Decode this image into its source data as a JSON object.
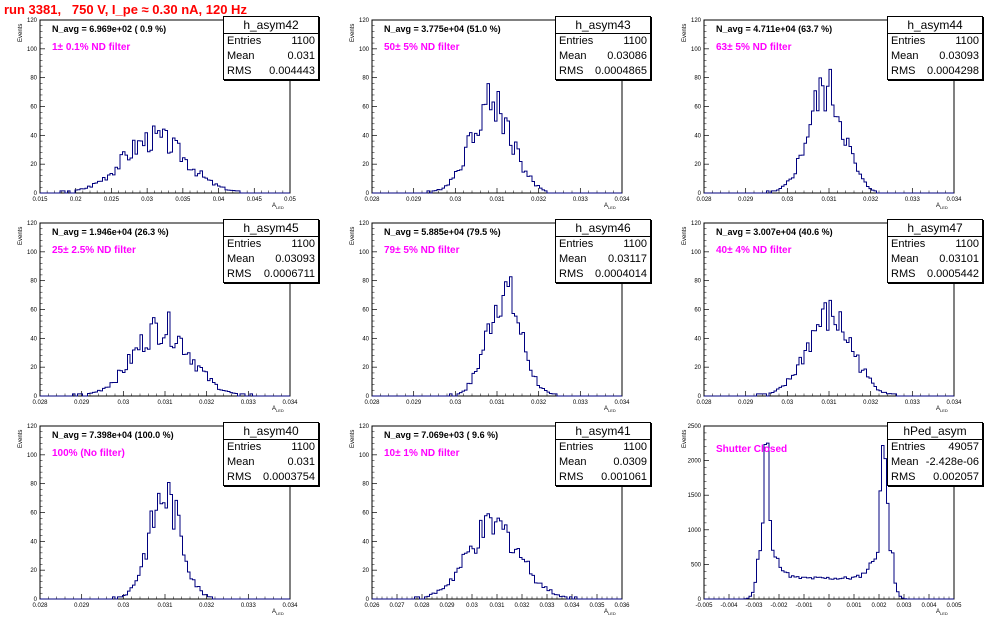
{
  "header": {
    "title": "run 3381,   750 V, I_pe ≈ 0.30 nA, 120 Hz"
  },
  "colors": {
    "title": "#ff0000",
    "filter_label": "#ff00ff",
    "histogram_line": "#00007f",
    "frame": "#000000"
  },
  "chart_data": [
    {
      "type": "histogram",
      "name": "h_asym42",
      "stats": {
        "entries_label": "Entries",
        "entries": "1100",
        "mean_label": "Mean",
        "mean": "0.031",
        "rms_label": "RMS",
        "rms": "0.004443"
      },
      "n_avg_label": "N_avg = 6.969e+02 ( 0.9 %)",
      "filter_label": "1± 0.1% ND filter",
      "ylabel": "Events",
      "xlabel": "A",
      "xlabel_sub": "LED",
      "xlim": [
        0.015,
        0.05
      ],
      "ylim": [
        0,
        120
      ],
      "xticks": [
        "0.015",
        "0.02",
        "0.025",
        "0.03",
        "0.035",
        "0.04",
        "0.045",
        "0.05"
      ],
      "yticks": [
        "0",
        "20",
        "40",
        "60",
        "80",
        "100",
        "120"
      ],
      "mean_value": 0.031,
      "sigma": 0.0044,
      "peak": 38
    },
    {
      "type": "histogram",
      "name": "h_asym43",
      "stats": {
        "entries_label": "Entries",
        "entries": "1100",
        "mean_label": "Mean",
        "mean": "0.03086",
        "rms_label": "RMS",
        "rms": "0.0004865"
      },
      "n_avg_label": "N_avg = 3.775e+04 (51.0 %)",
      "filter_label": "50± 5% ND filter",
      "ylabel": "Events",
      "xlabel": "A",
      "xlabel_sub": "LED",
      "xlim": [
        0.028,
        0.034
      ],
      "ylim": [
        0,
        120
      ],
      "xticks": [
        "0.028",
        "0.029",
        "0.03",
        "0.031",
        "0.032",
        "0.033",
        "0.034"
      ],
      "yticks": [
        "0",
        "20",
        "40",
        "60",
        "80",
        "100",
        "120"
      ],
      "mean_value": 0.03086,
      "sigma": 0.00049,
      "peak": 63
    },
    {
      "type": "histogram",
      "name": "h_asym44",
      "stats": {
        "entries_label": "Entries",
        "entries": "1100",
        "mean_label": "Mean",
        "mean": "0.03093",
        "rms_label": "RMS",
        "rms": "0.0004298"
      },
      "n_avg_label": "N_avg = 4.711e+04 (63.7 %)",
      "filter_label": "63± 5% ND filter",
      "ylabel": "Events",
      "xlabel": "A",
      "xlabel_sub": "LED",
      "xlim": [
        0.028,
        0.034
      ],
      "ylim": [
        0,
        120
      ],
      "xticks": [
        "0.028",
        "0.029",
        "0.03",
        "0.031",
        "0.032",
        "0.033",
        "0.034"
      ],
      "yticks": [
        "0",
        "20",
        "40",
        "60",
        "80",
        "100",
        "120"
      ],
      "mean_value": 0.03093,
      "sigma": 0.00043,
      "peak": 72
    },
    {
      "type": "histogram",
      "name": "h_asym45",
      "stats": {
        "entries_label": "Entries",
        "entries": "1100",
        "mean_label": "Mean",
        "mean": "0.03093",
        "rms_label": "RMS",
        "rms": "0.0006711"
      },
      "n_avg_label": "N_avg = 1.946e+04 (26.3 %)",
      "filter_label": "25± 2.5% ND filter",
      "ylabel": "Events",
      "xlabel": "A",
      "xlabel_sub": "LED",
      "xlim": [
        0.028,
        0.034
      ],
      "ylim": [
        0,
        120
      ],
      "xticks": [
        "0.028",
        "0.029",
        "0.03",
        "0.031",
        "0.032",
        "0.033",
        "0.034"
      ],
      "yticks": [
        "0",
        "20",
        "40",
        "60",
        "80",
        "100",
        "120"
      ],
      "mean_value": 0.03093,
      "sigma": 0.00067,
      "peak": 48
    },
    {
      "type": "histogram",
      "name": "h_asym46",
      "stats": {
        "entries_label": "Entries",
        "entries": "1100",
        "mean_label": "Mean",
        "mean": "0.03117",
        "rms_label": "RMS",
        "rms": "0.0004014"
      },
      "n_avg_label": "N_avg = 5.885e+04 (79.5 %)",
      "filter_label": "79± 5% ND filter",
      "ylabel": "Events",
      "xlabel": "A",
      "xlabel_sub": "LED",
      "xlim": [
        0.028,
        0.034
      ],
      "ylim": [
        0,
        120
      ],
      "xticks": [
        "0.028",
        "0.029",
        "0.03",
        "0.031",
        "0.032",
        "0.033",
        "0.034"
      ],
      "yticks": [
        "0",
        "20",
        "40",
        "60",
        "80",
        "100",
        "120"
      ],
      "mean_value": 0.03117,
      "sigma": 0.0004,
      "peak": 73
    },
    {
      "type": "histogram",
      "name": "h_asym47",
      "stats": {
        "entries_label": "Entries",
        "entries": "1100",
        "mean_label": "Mean",
        "mean": "0.03101",
        "rms_label": "RMS",
        "rms": "0.0005442"
      },
      "n_avg_label": "N_avg = 3.007e+04 (40.6 %)",
      "filter_label": "40± 4% ND filter",
      "ylabel": "Events",
      "xlabel": "A",
      "xlabel_sub": "LED",
      "xlim": [
        0.028,
        0.034
      ],
      "ylim": [
        0,
        120
      ],
      "xticks": [
        "0.028",
        "0.029",
        "0.03",
        "0.031",
        "0.032",
        "0.033",
        "0.034"
      ],
      "yticks": [
        "0",
        "20",
        "40",
        "60",
        "80",
        "100",
        "120"
      ],
      "mean_value": 0.03101,
      "sigma": 0.00054,
      "peak": 55
    },
    {
      "type": "histogram",
      "name": "h_asym40",
      "stats": {
        "entries_label": "Entries",
        "entries": "1100",
        "mean_label": "Mean",
        "mean": "0.031",
        "rms_label": "RMS",
        "rms": "0.0003754"
      },
      "n_avg_label": "N_avg = 7.398e+04 (100.0 %)",
      "filter_label": "100% (No filter)",
      "ylabel": "Events",
      "xlabel": "A",
      "xlabel_sub": "LED",
      "xlim": [
        0.028,
        0.034
      ],
      "ylim": [
        0,
        120
      ],
      "xticks": [
        "0.028",
        "0.029",
        "0.03",
        "0.031",
        "0.032",
        "0.033",
        "0.034"
      ],
      "yticks": [
        "0",
        "20",
        "40",
        "60",
        "80",
        "100",
        "120"
      ],
      "mean_value": 0.031,
      "sigma": 0.00038,
      "peak": 73
    },
    {
      "type": "histogram",
      "name": "h_asym41",
      "stats": {
        "entries_label": "Entries",
        "entries": "1100",
        "mean_label": "Mean",
        "mean": "0.0309",
        "rms_label": "RMS",
        "rms": "0.001061"
      },
      "n_avg_label": "N_avg = 7.069e+03 ( 9.6 %)",
      "filter_label": "10± 1% ND filter",
      "ylabel": "Events",
      "xlabel": "A",
      "xlabel_sub": "LED",
      "xlim": [
        0.026,
        0.036
      ],
      "ylim": [
        0,
        120
      ],
      "xticks": [
        "0.026",
        "0.027",
        "0.028",
        "0.029",
        "0.03",
        "0.031",
        "0.032",
        "0.033",
        "0.034",
        "0.035",
        "0.036"
      ],
      "yticks": [
        "0",
        "20",
        "40",
        "60",
        "80",
        "100",
        "120"
      ],
      "mean_value": 0.0309,
      "sigma": 0.00106,
      "peak": 50
    },
    {
      "type": "histogram",
      "name": "hPed_asym",
      "stats": {
        "entries_label": "Entries",
        "entries": "49057",
        "mean_label": "Mean",
        "mean": "-2.428e-06",
        "rms_label": "RMS",
        "rms": "0.002057"
      },
      "n_avg_label": "",
      "filter_label": "Shutter Closed",
      "ylabel": "Events",
      "xlabel": "A",
      "xlabel_sub": "LED",
      "xlim": [
        -0.005,
        0.005
      ],
      "ylim": [
        0,
        2500
      ],
      "xticks": [
        "-0.005",
        "-0.004",
        "-0.003",
        "-0.002",
        "-0.001",
        "0",
        "0.001",
        "0.002",
        "0.003",
        "0.004",
        "0.005"
      ],
      "yticks": [
        "0",
        "500",
        "1000",
        "1500",
        "2000",
        "2500"
      ],
      "bimodal": true,
      "peaks": [
        -0.0025,
        0.0022
      ],
      "peak_heights": [
        2420,
        2300
      ],
      "floor": 300
    }
  ]
}
